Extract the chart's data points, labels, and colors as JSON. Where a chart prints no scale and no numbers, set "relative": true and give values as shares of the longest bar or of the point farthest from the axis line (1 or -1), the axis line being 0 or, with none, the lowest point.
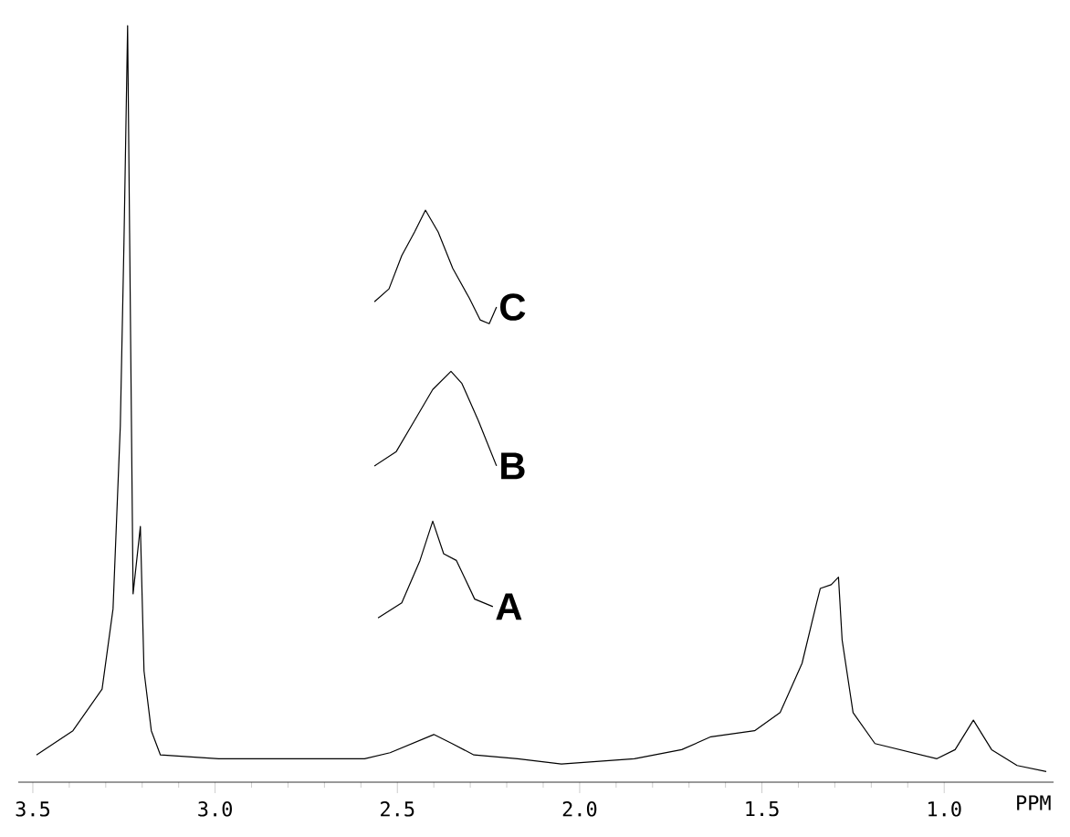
{
  "chart_data": {
    "type": "line",
    "relative": true,
    "xlabel": "PPM",
    "xlim": [
      3.54,
      0.7
    ],
    "xticks": [
      3.5,
      {
        "value": 3,
        "label": "3.0"
      },
      2.5,
      {
        "value": 2,
        "label": "2.0"
      },
      1.5,
      {
        "value": 1,
        "label": "1.0"
      }
    ],
    "series": [
      {
        "color": "#000000",
        "x": [
          3.49,
          3.39,
          3.31,
          3.28,
          3.26,
          3.25,
          3.24,
          3.225,
          3.205,
          3.195,
          3.175,
          3.15,
          2.99,
          2.79,
          2.59,
          2.52,
          2.4,
          2.35,
          2.29,
          2.17,
          2.05,
          1.85,
          1.72,
          1.64,
          1.52,
          1.45,
          1.39,
          1.35,
          1.34,
          1.31,
          1.29,
          1.28,
          1.25,
          1.19,
          1.02,
          0.97,
          0.92,
          0.87,
          0.8,
          0.72
        ],
        "values": [
          0.036,
          0.068,
          0.123,
          0.229,
          0.471,
          0.713,
          1.0,
          0.249,
          0.338,
          0.147,
          0.068,
          0.036,
          0.031,
          0.031,
          0.031,
          0.039,
          0.063,
          0.051,
          0.036,
          0.031,
          0.024,
          0.031,
          0.043,
          0.06,
          0.068,
          0.092,
          0.157,
          0.237,
          0.256,
          0.261,
          0.271,
          0.188,
          0.092,
          0.051,
          0.031,
          0.043,
          0.082,
          0.043,
          0.022,
          0.014
        ]
      },
      {
        "name": "A",
        "color": "#000000",
        "x": [
          2.553,
          2.488,
          2.438,
          2.403,
          2.373,
          2.338,
          2.288,
          2.238
        ],
        "values": [
          0.217,
          0.237,
          0.293,
          0.345,
          0.302,
          0.293,
          0.242,
          0.232
        ]
      },
      {
        "name": "B",
        "color": "#000000",
        "x": [
          2.563,
          2.503,
          2.453,
          2.403,
          2.353,
          2.323,
          2.278,
          2.228
        ],
        "values": [
          0.418,
          0.437,
          0.478,
          0.519,
          0.543,
          0.527,
          0.478,
          0.418
        ]
      },
      {
        "name": "C",
        "color": "#000000",
        "x": [
          2.563,
          2.523,
          2.488,
          2.453,
          2.423,
          2.388,
          2.348,
          2.303,
          2.273,
          2.248,
          2.228
        ],
        "values": [
          0.635,
          0.652,
          0.696,
          0.727,
          0.756,
          0.727,
          0.679,
          0.64,
          0.611,
          0.606,
          0.628
        ]
      }
    ]
  }
}
